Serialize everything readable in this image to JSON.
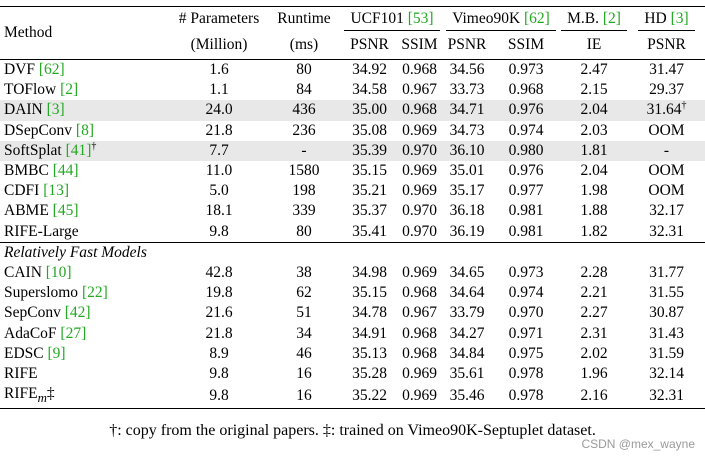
{
  "header": {
    "method": "Method",
    "params": "# Parameters",
    "params_unit": "(Million)",
    "runtime": "Runtime",
    "runtime_unit": "(ms)",
    "groups": [
      {
        "name": "UCF101 ",
        "cite": "[53]"
      },
      {
        "name": "Vimeo90K ",
        "cite": "[62]"
      },
      {
        "name": "M.B. ",
        "cite": "[2]"
      },
      {
        "name": "HD ",
        "cite": "[3]"
      }
    ],
    "metrics": [
      "PSNR",
      "SSIM",
      "PSNR",
      "SSIM",
      "IE",
      "PSNR"
    ]
  },
  "rows_a": [
    {
      "name": "DVF ",
      "cite": "[62]",
      "cells": [
        "1.6",
        "80",
        "34.92",
        "0.968",
        "34.56",
        "0.973",
        "2.47",
        "31.47"
      ],
      "bold": [],
      "shade": false
    },
    {
      "name": "TOFlow ",
      "cite": "[2]",
      "cells": [
        "1.1",
        "84",
        "34.58",
        "0.967",
        "33.73",
        "0.968",
        "2.15",
        "29.37"
      ],
      "bold": [
        0
      ],
      "shade": false
    },
    {
      "name": "DAIN ",
      "cite": "[3]",
      "cells": [
        "24.0",
        "436",
        "35.00",
        "0.968",
        "34.71",
        "0.976",
        "2.04",
        "31.64"
      ],
      "bold": [],
      "shade": true,
      "sup7": "†"
    },
    {
      "name": "DSepConv ",
      "cite": "[8]",
      "cells": [
        "21.8",
        "236",
        "35.08",
        "0.969",
        "34.73",
        "0.974",
        "2.03",
        "OOM"
      ],
      "bold": [],
      "shade": false
    },
    {
      "name": "SoftSplat ",
      "cite": "[41]",
      "name_sup": "†",
      "cells": [
        "7.7",
        "-",
        "35.39",
        "0.970",
        "36.10",
        "0.980",
        "1.81",
        "-"
      ],
      "bold": [
        3,
        6
      ],
      "shade": true
    },
    {
      "name": "BMBC ",
      "cite": "[44]",
      "cells": [
        "11.0",
        "1580",
        "35.15",
        "0.969",
        "35.01",
        "0.976",
        "2.04",
        "OOM"
      ],
      "bold": [],
      "shade": false
    },
    {
      "name": "CDFI ",
      "cite": "[13]",
      "cells": [
        "5.0",
        "198",
        "35.21",
        "0.969",
        "35.17",
        "0.977",
        "1.98",
        "OOM"
      ],
      "bold": [],
      "shade": false
    },
    {
      "name": "ABME ",
      "cite": "[45]",
      "cells": [
        "18.1",
        "339",
        "35.37",
        "0.970",
        "36.18",
        "0.981",
        "1.88",
        "32.17"
      ],
      "bold": [
        3,
        5
      ],
      "shade": false
    },
    {
      "name": "RIFE-Large",
      "cite": "",
      "cells": [
        "9.8",
        "80",
        "35.41",
        "0.970",
        "36.19",
        "0.981",
        "1.82",
        "32.31"
      ],
      "bold": [
        2,
        3,
        4,
        5,
        7
      ],
      "shade": false
    }
  ],
  "section_title": "Relatively Fast Models",
  "rows_b": [
    {
      "name": "CAIN ",
      "cite": "[10]",
      "cells": [
        "42.8",
        "38",
        "34.98",
        "0.969",
        "34.65",
        "0.973",
        "2.28",
        "31.77"
      ],
      "bold": [
        3
      ],
      "shade": false
    },
    {
      "name": "Superslomo ",
      "cite": "[22]",
      "cells": [
        "19.8",
        "62",
        "35.15",
        "0.968",
        "34.64",
        "0.974",
        "2.21",
        "31.55"
      ],
      "bold": [],
      "shade": false
    },
    {
      "name": "SepConv ",
      "cite": "[42]",
      "cells": [
        "21.6",
        "51",
        "34.78",
        "0.967",
        "33.79",
        "0.970",
        "2.27",
        "30.87"
      ],
      "bold": [],
      "shade": false
    },
    {
      "name": "AdaCoF ",
      "cite": "[27]",
      "cells": [
        "21.8",
        "34",
        "34.91",
        "0.968",
        "34.27",
        "0.971",
        "2.31",
        "31.43"
      ],
      "bold": [],
      "shade": false
    },
    {
      "name": "EDSC ",
      "cite": "[9]",
      "cells": [
        "8.9",
        "46",
        "35.13",
        "0.968",
        "34.84",
        "0.975",
        "2.02",
        "31.59"
      ],
      "bold": [
        0
      ],
      "shade": false
    },
    {
      "name": "RIFE",
      "cite": "",
      "cells": [
        "9.8",
        "16",
        "35.28",
        "0.969",
        "35.61",
        "0.978",
        "1.96",
        "32.14"
      ],
      "bold": [
        1,
        2,
        3,
        4,
        5,
        6
      ],
      "shade": false
    },
    {
      "name": "RIFE",
      "name_sub": "m",
      "name_suffix": "‡",
      "cite": "",
      "cells": [
        "9.8",
        "16",
        "35.22",
        "0.969",
        "35.46",
        "0.978",
        "2.16",
        "32.31"
      ],
      "bold": [
        1,
        3,
        5,
        7
      ],
      "shade": false
    }
  ],
  "footnote": "†: copy from the original papers. ‡: trained on Vimeo90K-Septuplet dataset.",
  "watermark": "CSDN @mex_wayne"
}
